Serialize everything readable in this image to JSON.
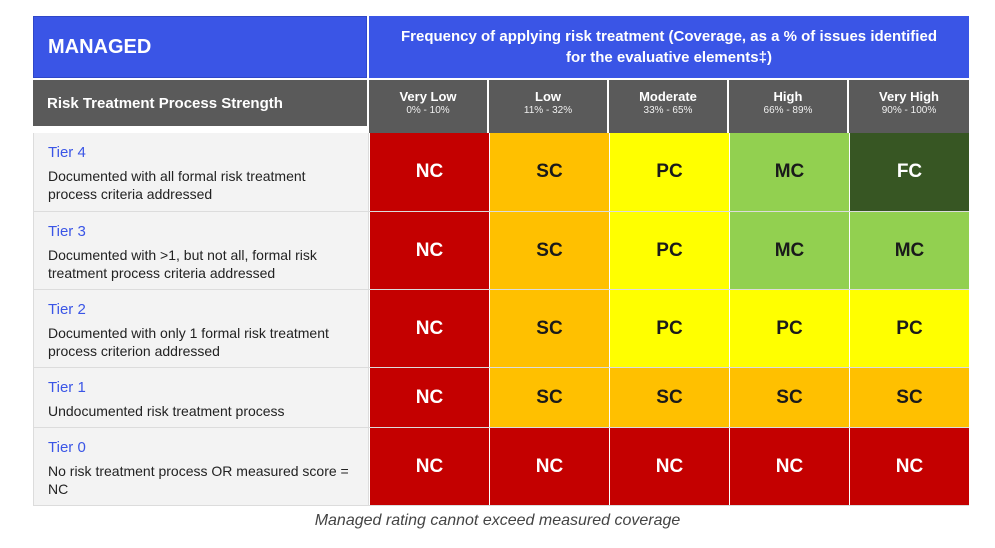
{
  "header": {
    "title": "MANAGED",
    "frequency_title": "Frequency of applying risk treatment (Coverage, as a % of issues identified for the evaluative elements‡)"
  },
  "columns_header": {
    "row_label": "Risk Treatment Process Strength",
    "columns": [
      {
        "name": "Very Low",
        "range": "0% - 10%"
      },
      {
        "name": "Low",
        "range": "11% - 32%"
      },
      {
        "name": "Moderate",
        "range": "33% - 65%"
      },
      {
        "name": "High",
        "range": "66% - 89%"
      },
      {
        "name": "Very High",
        "range": "90% - 100%"
      }
    ]
  },
  "tiers": [
    {
      "name": "Tier 4",
      "description": "Documented with all formal risk treatment process criteria addressed",
      "cells": [
        "NC",
        "SC",
        "PC",
        "MC",
        "FC"
      ]
    },
    {
      "name": "Tier 3",
      "description": "Documented with >1, but not all, formal risk treatment process criteria addressed",
      "cells": [
        "NC",
        "SC",
        "PC",
        "MC",
        "MC"
      ]
    },
    {
      "name": "Tier 2",
      "description": "Documented with only 1 formal risk treatment process criterion addressed",
      "cells": [
        "NC",
        "SC",
        "PC",
        "PC",
        "PC"
      ]
    },
    {
      "name": "Tier 1",
      "description": "Undocumented risk treatment process",
      "cells": [
        "NC",
        "SC",
        "SC",
        "SC",
        "SC"
      ]
    },
    {
      "name": "Tier 0",
      "description": "No risk treatment process OR measured score = NC",
      "cells": [
        "NC",
        "NC",
        "NC",
        "NC",
        "NC"
      ]
    }
  ],
  "rating_colors": {
    "NC": {
      "bg": "#c40000",
      "fg": "#ffffff"
    },
    "SC": {
      "bg": "#ffc000",
      "fg": "#1a1a1a"
    },
    "PC": {
      "bg": "#ffff00",
      "fg": "#1a1a1a"
    },
    "MC": {
      "bg": "#92d050",
      "fg": "#1a1a1a"
    },
    "FC": {
      "bg": "#375623",
      "fg": "#ffffff"
    }
  },
  "caption": "Managed rating cannot exceed measured coverage"
}
